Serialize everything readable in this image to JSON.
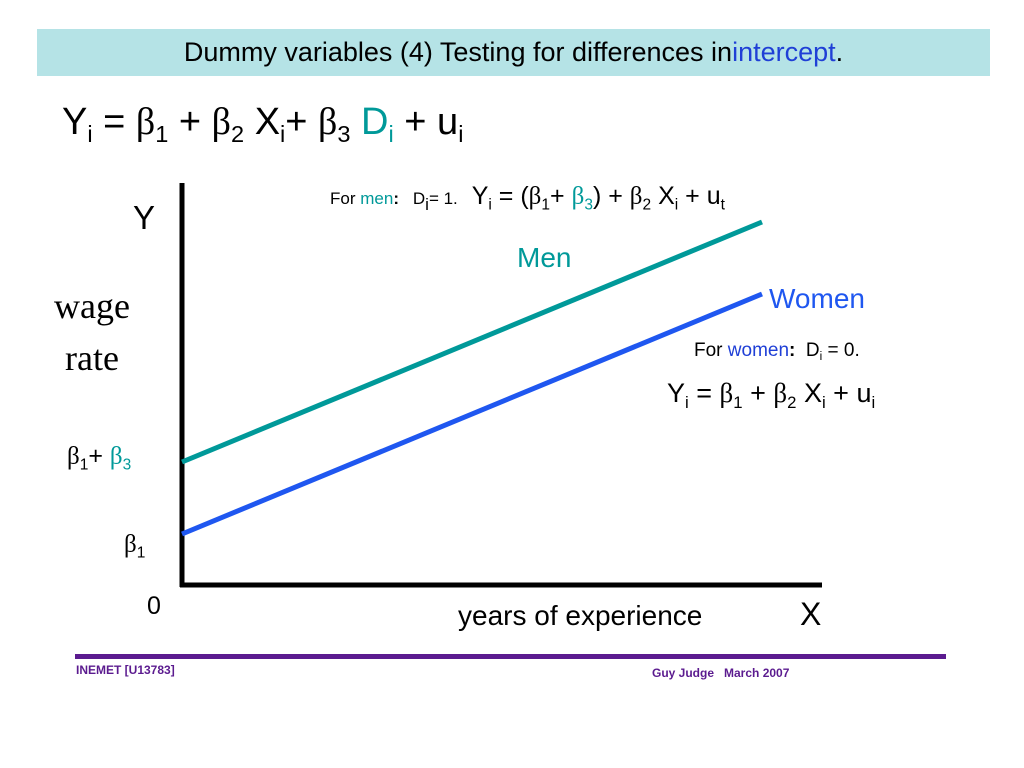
{
  "title": {
    "prefix": "Dummy variables (4) Testing for differences in ",
    "highlight": "intercept",
    "suffix": "."
  },
  "main_equation": {
    "y": "Y",
    "i": "i",
    "eq": " = ",
    "beta": "β",
    "one": "1",
    "two": "2",
    "three": "3",
    "plus": " + ",
    "x": "X",
    "plus_tight": "+ ",
    "d": "D",
    "u": "u"
  },
  "men_equation": {
    "for": "For ",
    "group": "men",
    "colon": ":",
    "d": "D",
    "i": "i",
    "d_val": "= 1.",
    "y": "Y",
    "eq_open": " = (",
    "beta": "β",
    "one": "1",
    "plus_tight": "+ ",
    "three": "3",
    "close_plus": ") + ",
    "two": "2",
    "x": "X",
    "plus": " + ",
    "u": "u",
    "t": "t"
  },
  "women_equation": {
    "for": "For ",
    "group": "women",
    "colon": ":",
    "d": "D",
    "i": "i",
    "d_val": " = 0.",
    "y": "Y",
    "eq": " = ",
    "beta": "β",
    "one": "1",
    "plus": " + ",
    "two": "2",
    "x": "X",
    "u": "u"
  },
  "axes": {
    "y_label": "Y",
    "y_title_line1": "wage",
    "y_title_line2": "rate",
    "origin": "0",
    "x_title": "years of experience",
    "x_label": "X"
  },
  "intercepts": {
    "beta": "β",
    "one": "1",
    "plus": "+ ",
    "three": "3"
  },
  "series": [
    {
      "name": "Men",
      "color": "#009999"
    },
    {
      "name": "Women",
      "color": "#1f57f0"
    }
  ],
  "footer": {
    "left": "INEMET [U13783]",
    "right": "Guy Judge   March 2007",
    "color": "#5b1b8f"
  }
}
